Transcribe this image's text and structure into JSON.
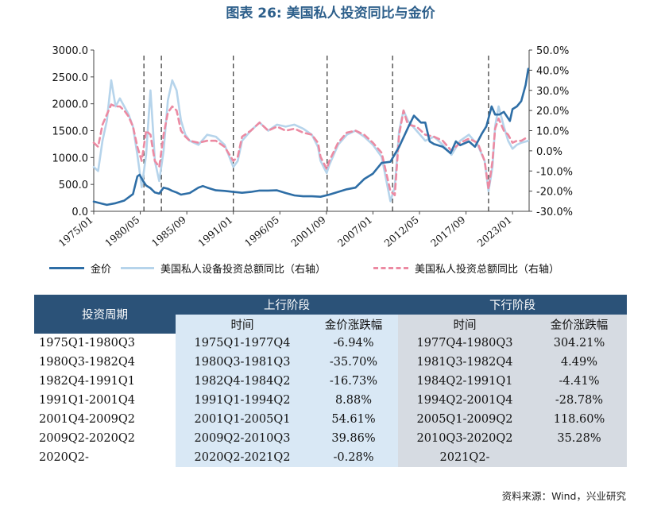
{
  "title": "图表 26: 美国私人投资同比与金价",
  "chart_data": {
    "type": "line",
    "x_tick_labels": [
      "1975/01",
      "1980/05",
      "1985/09",
      "1991/01",
      "1996/05",
      "2001/09",
      "2007/01",
      "2012/05",
      "2017/09",
      "2023/01"
    ],
    "left_axis": {
      "ylim": [
        0,
        3000
      ],
      "ticks": [
        "0.0",
        "500.0",
        "1000.0",
        "1500.0",
        "2000.0",
        "2500.0",
        "3000.0"
      ]
    },
    "right_axis": {
      "ylim": [
        -30,
        50
      ],
      "ticks": [
        "-30.0%",
        "-20.0%",
        "-10.0%",
        "0.0%",
        "10.0%",
        "20.0%",
        "30.0%",
        "40.0%",
        "50.0%"
      ]
    },
    "vertical_dashed_lines": [
      1980.75,
      1982.75,
      1991.0,
      2001.75,
      2009.25,
      2020.25
    ],
    "series": [
      {
        "name": "金价",
        "axis": "left",
        "color": "#2e6ea6",
        "points": [
          [
            1975.0,
            180
          ],
          [
            1976.5,
            120
          ],
          [
            1977.5,
            150
          ],
          [
            1978.5,
            200
          ],
          [
            1979.5,
            320
          ],
          [
            1980.0,
            650
          ],
          [
            1980.25,
            680
          ],
          [
            1980.6,
            580
          ],
          [
            1981.0,
            480
          ],
          [
            1981.5,
            430
          ],
          [
            1982.0,
            350
          ],
          [
            1982.5,
            330
          ],
          [
            1983.0,
            440
          ],
          [
            1983.5,
            420
          ],
          [
            1984.0,
            380
          ],
          [
            1984.5,
            350
          ],
          [
            1985.0,
            310
          ],
          [
            1986.0,
            340
          ],
          [
            1987.0,
            440
          ],
          [
            1987.5,
            470
          ],
          [
            1988.0,
            440
          ],
          [
            1989.0,
            390
          ],
          [
            1990.0,
            380
          ],
          [
            1991.0,
            360
          ],
          [
            1992.0,
            345
          ],
          [
            1993.0,
            360
          ],
          [
            1994.0,
            385
          ],
          [
            1995.0,
            385
          ],
          [
            1996.0,
            390
          ],
          [
            1997.0,
            340
          ],
          [
            1998.0,
            295
          ],
          [
            1999.0,
            280
          ],
          [
            2000.0,
            280
          ],
          [
            2001.0,
            270
          ],
          [
            2002.0,
            310
          ],
          [
            2003.0,
            360
          ],
          [
            2004.0,
            410
          ],
          [
            2005.0,
            440
          ],
          [
            2006.0,
            600
          ],
          [
            2007.0,
            700
          ],
          [
            2008.0,
            900
          ],
          [
            2009.0,
            920
          ],
          [
            2010.0,
            1200
          ],
          [
            2011.0,
            1550
          ],
          [
            2011.7,
            1780
          ],
          [
            2012.5,
            1650
          ],
          [
            2013.0,
            1650
          ],
          [
            2013.5,
            1300
          ],
          [
            2014.0,
            1250
          ],
          [
            2015.0,
            1200
          ],
          [
            2015.9,
            1080
          ],
          [
            2016.5,
            1300
          ],
          [
            2017.0,
            1230
          ],
          [
            2018.0,
            1300
          ],
          [
            2018.7,
            1200
          ],
          [
            2019.5,
            1450
          ],
          [
            2020.0,
            1580
          ],
          [
            2020.6,
            1950
          ],
          [
            2021.0,
            1800
          ],
          [
            2021.5,
            1800
          ],
          [
            2022.0,
            1850
          ],
          [
            2022.7,
            1680
          ],
          [
            2023.0,
            1900
          ],
          [
            2023.5,
            1950
          ],
          [
            2024.0,
            2050
          ],
          [
            2024.5,
            2350
          ],
          [
            2024.8,
            2650
          ]
        ]
      },
      {
        "name": "美国私人设备投资总额同比（右轴）",
        "axis": "right",
        "color": "#b6d4eb",
        "points": [
          [
            1975.0,
            -8
          ],
          [
            1975.5,
            -10
          ],
          [
            1976.0,
            5
          ],
          [
            1976.5,
            15
          ],
          [
            1977.0,
            35
          ],
          [
            1977.5,
            22
          ],
          [
            1978.0,
            26
          ],
          [
            1978.5,
            22
          ],
          [
            1979.0,
            18
          ],
          [
            1979.5,
            12
          ],
          [
            1980.0,
            -2
          ],
          [
            1980.5,
            -18
          ],
          [
            1981.0,
            -2
          ],
          [
            1981.5,
            30
          ],
          [
            1981.8,
            10
          ],
          [
            1982.0,
            -5
          ],
          [
            1982.5,
            -15
          ],
          [
            1983.0,
            0
          ],
          [
            1983.5,
            25
          ],
          [
            1984.0,
            35
          ],
          [
            1984.5,
            30
          ],
          [
            1985.0,
            15
          ],
          [
            1985.5,
            8
          ],
          [
            1986.0,
            5
          ],
          [
            1987.0,
            3
          ],
          [
            1988.0,
            8
          ],
          [
            1989.0,
            7
          ],
          [
            1990.0,
            3
          ],
          [
            1991.0,
            -8
          ],
          [
            1991.5,
            -5
          ],
          [
            1992.0,
            5
          ],
          [
            1993.0,
            10
          ],
          [
            1994.0,
            14
          ],
          [
            1995.0,
            10
          ],
          [
            1996.0,
            13
          ],
          [
            1997.0,
            12
          ],
          [
            1998.0,
            13
          ],
          [
            1999.0,
            11
          ],
          [
            2000.0,
            8
          ],
          [
            2000.7,
            2
          ],
          [
            2001.0,
            -5
          ],
          [
            2001.7,
            -11
          ],
          [
            2002.0,
            -7
          ],
          [
            2003.0,
            3
          ],
          [
            2004.0,
            8
          ],
          [
            2005.0,
            10
          ],
          [
            2006.0,
            7
          ],
          [
            2007.0,
            3
          ],
          [
            2008.0,
            -3
          ],
          [
            2009.0,
            -25
          ],
          [
            2009.5,
            -18
          ],
          [
            2010.0,
            10
          ],
          [
            2010.5,
            20
          ],
          [
            2011.0,
            15
          ],
          [
            2012.0,
            10
          ],
          [
            2013.0,
            5
          ],
          [
            2014.0,
            7
          ],
          [
            2015.0,
            3
          ],
          [
            2016.0,
            -2
          ],
          [
            2017.0,
            5
          ],
          [
            2018.0,
            8
          ],
          [
            2019.0,
            3
          ],
          [
            2019.8,
            -5
          ],
          [
            2020.25,
            -20
          ],
          [
            2020.7,
            -8
          ],
          [
            2021.0,
            12
          ],
          [
            2021.4,
            22
          ],
          [
            2022.0,
            12
          ],
          [
            2022.5,
            5
          ],
          [
            2023.0,
            1
          ],
          [
            2023.5,
            3
          ],
          [
            2024.0,
            4
          ],
          [
            2024.8,
            5
          ]
        ]
      },
      {
        "name": "美国私人投资总额同比（右轴）",
        "axis": "right",
        "color": "#ec8aa2",
        "points": [
          [
            1975.0,
            4
          ],
          [
            1975.5,
            2
          ],
          [
            1976.0,
            13
          ],
          [
            1976.5,
            18
          ],
          [
            1977.0,
            23
          ],
          [
            1977.5,
            22
          ],
          [
            1978.0,
            22
          ],
          [
            1978.5,
            20
          ],
          [
            1979.0,
            17
          ],
          [
            1979.5,
            12
          ],
          [
            1980.0,
            2
          ],
          [
            1980.5,
            -5
          ],
          [
            1981.0,
            10
          ],
          [
            1981.5,
            8
          ],
          [
            1981.8,
            0
          ],
          [
            1982.0,
            -5
          ],
          [
            1982.5,
            -8
          ],
          [
            1983.0,
            8
          ],
          [
            1983.5,
            19
          ],
          [
            1984.0,
            22
          ],
          [
            1984.5,
            20
          ],
          [
            1985.0,
            10
          ],
          [
            1985.5,
            7
          ],
          [
            1986.0,
            5
          ],
          [
            1987.0,
            4
          ],
          [
            1988.0,
            5
          ],
          [
            1989.0,
            5
          ],
          [
            1990.0,
            2
          ],
          [
            1991.0,
            -5
          ],
          [
            1991.5,
            -3
          ],
          [
            1992.0,
            7
          ],
          [
            1993.0,
            10
          ],
          [
            1994.0,
            14
          ],
          [
            1995.0,
            10
          ],
          [
            1996.0,
            12
          ],
          [
            1997.0,
            10
          ],
          [
            1998.0,
            11
          ],
          [
            1999.0,
            9
          ],
          [
            2000.0,
            8
          ],
          [
            2000.7,
            4
          ],
          [
            2001.0,
            -3
          ],
          [
            2001.7,
            -9
          ],
          [
            2002.0,
            -5
          ],
          [
            2003.0,
            4
          ],
          [
            2004.0,
            9
          ],
          [
            2005.0,
            10
          ],
          [
            2006.0,
            8
          ],
          [
            2007.0,
            4
          ],
          [
            2008.0,
            -1
          ],
          [
            2009.0,
            -20
          ],
          [
            2009.5,
            -22
          ],
          [
            2010.0,
            8
          ],
          [
            2010.5,
            20
          ],
          [
            2011.0,
            13
          ],
          [
            2012.0,
            12
          ],
          [
            2013.0,
            8
          ],
          [
            2014.0,
            7
          ],
          [
            2015.0,
            5
          ],
          [
            2016.0,
            0
          ],
          [
            2017.0,
            4
          ],
          [
            2018.0,
            6
          ],
          [
            2019.0,
            4
          ],
          [
            2019.8,
            -5
          ],
          [
            2020.25,
            -19
          ],
          [
            2020.7,
            -5
          ],
          [
            2021.0,
            11
          ],
          [
            2021.4,
            16
          ],
          [
            2022.0,
            10
          ],
          [
            2022.5,
            8
          ],
          [
            2023.0,
            4
          ],
          [
            2023.5,
            5
          ],
          [
            2024.0,
            5
          ],
          [
            2024.8,
            7
          ]
        ]
      }
    ]
  },
  "table": {
    "header": {
      "period": "投资周期",
      "up": "上行阶段",
      "down": "下行阶段",
      "time": "时间",
      "change": "金价涨跌幅"
    },
    "rows": [
      [
        "1975Q1-1980Q3",
        "1975Q1-1977Q4",
        "-6.94%",
        "1977Q4-1980Q3",
        "304.21%"
      ],
      [
        "1980Q3-1982Q4",
        "1980Q3-1981Q3",
        "-35.70%",
        "1981Q3-1982Q4",
        "4.49%"
      ],
      [
        "1982Q4-1991Q1",
        "1982Q4-1984Q2",
        "-16.73%",
        "1984Q2-1991Q1",
        "-4.41%"
      ],
      [
        "1991Q1-2001Q4",
        "1991Q1-1994Q2",
        "8.88%",
        "1994Q2-2001Q4",
        "-28.78%"
      ],
      [
        "2001Q4-2009Q2",
        "2001Q1-2005Q1",
        "54.61%",
        "2005Q1-2009Q2",
        "118.60%"
      ],
      [
        "2009Q2-2020Q2",
        "2009Q2-2010Q3",
        "39.86%",
        "2010Q3-2020Q2",
        "35.28%"
      ],
      [
        "2020Q2-",
        "2020Q2-2021Q2",
        "-0.28%",
        "2021Q2-",
        ""
      ]
    ]
  },
  "source": "资料来源：Wind，兴业研究"
}
